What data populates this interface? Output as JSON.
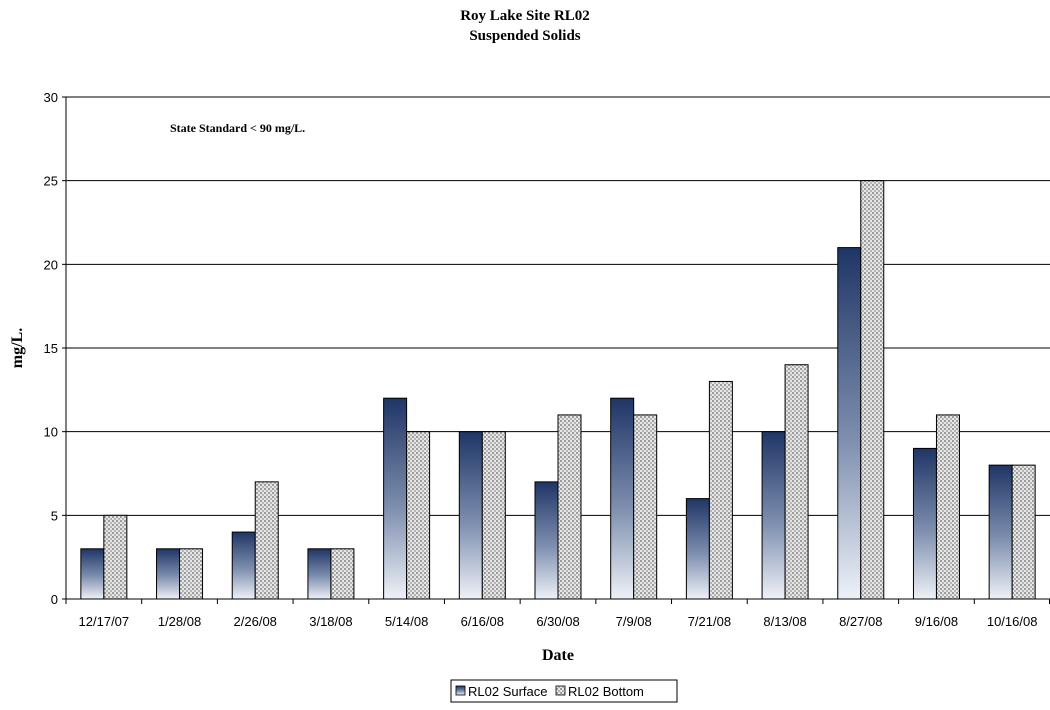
{
  "chart_data": {
    "type": "bar",
    "title": "Roy Lake Site RL02",
    "subtitle": "Suspended Solids",
    "xlabel": "Date",
    "ylabel": "mg/L.",
    "annotation": "State Standard < 90 mg/L.",
    "categories": [
      "12/17/07",
      "1/28/08",
      "2/26/08",
      "3/18/08",
      "5/14/08",
      "6/16/08",
      "6/30/08",
      "7/9/08",
      "7/21/08",
      "8/13/08",
      "8/27/08",
      "9/16/08",
      "10/16/08"
    ],
    "series": [
      {
        "name": "RL02 Surface",
        "values": [
          3,
          3,
          4,
          3,
          12,
          10,
          7,
          12,
          6,
          10,
          21,
          9,
          8
        ],
        "color": "#1f3566"
      },
      {
        "name": "RL02 Bottom",
        "values": [
          5,
          3,
          7,
          3,
          10,
          10,
          11,
          11,
          13,
          14,
          25,
          11,
          8
        ],
        "color": "#c8c8c8"
      }
    ],
    "ylim": [
      0,
      30
    ],
    "yticks": [
      0,
      5,
      10,
      15,
      20,
      25,
      30
    ],
    "grid": true,
    "legend_position": "bottom-center"
  }
}
